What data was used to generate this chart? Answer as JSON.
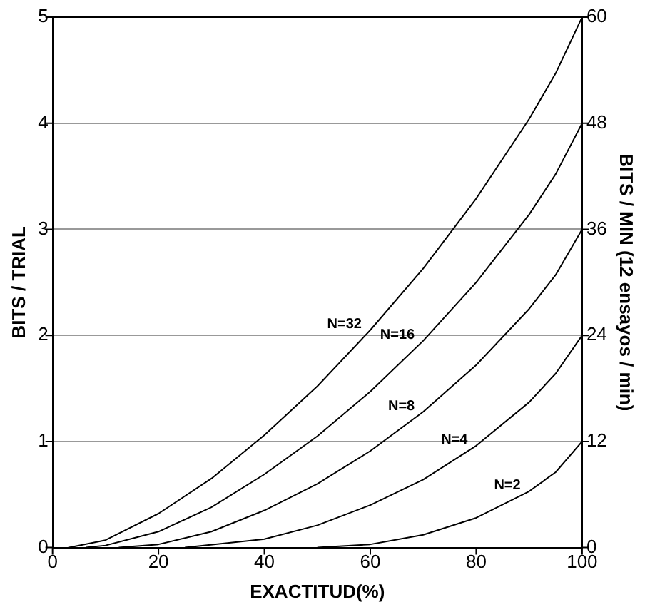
{
  "chart_data": {
    "type": "line",
    "xlabel": "EXACTITUD(%)",
    "ylabel": "BITS / TRIAL",
    "y2label": "BITS / MIN (12 ensayos / min)",
    "series": [
      {
        "name": "N=2",
        "color": "#000000",
        "x": [
          50,
          60,
          70,
          80,
          90,
          95,
          100
        ],
        "values": [
          0,
          0.03,
          0.12,
          0.28,
          0.53,
          0.71,
          1
        ]
      },
      {
        "name": "N=4",
        "color": "#000000",
        "x": [
          25,
          40,
          50,
          60,
          70,
          80,
          90,
          95,
          100
        ],
        "values": [
          0,
          0.08,
          0.21,
          0.4,
          0.64,
          0.96,
          1.37,
          1.64,
          2
        ]
      },
      {
        "name": "N=8",
        "color": "#000000",
        "x": [
          12.5,
          20,
          30,
          40,
          50,
          60,
          70,
          80,
          90,
          95,
          100
        ],
        "values": [
          0,
          0.03,
          0.15,
          0.35,
          0.6,
          0.91,
          1.28,
          1.72,
          2.25,
          2.57,
          3
        ]
      },
      {
        "name": "N=16",
        "color": "#000000",
        "x": [
          6.25,
          10,
          20,
          30,
          40,
          50,
          60,
          70,
          80,
          90,
          95,
          100
        ],
        "values": [
          0,
          0.02,
          0.15,
          0.38,
          0.69,
          1.05,
          1.47,
          1.95,
          2.5,
          3.14,
          3.52,
          4
        ]
      },
      {
        "name": "N=32",
        "color": "#000000",
        "x": [
          3.125,
          10,
          20,
          30,
          40,
          50,
          60,
          70,
          80,
          90,
          95,
          100
        ],
        "values": [
          0,
          0.07,
          0.32,
          0.65,
          1.06,
          1.52,
          2.05,
          2.63,
          3.29,
          4.04,
          4.47,
          5
        ]
      }
    ],
    "xlim": [
      0,
      100
    ],
    "xticks": [
      0,
      20,
      40,
      60,
      80,
      100
    ],
    "ylim": [
      0,
      5
    ],
    "yticks": [
      0,
      1,
      2,
      3,
      4,
      5
    ],
    "y2lim": [
      0,
      60
    ],
    "y2ticks": [
      0,
      12,
      24,
      36,
      48,
      60
    ],
    "grid": "y",
    "legend": false,
    "marker": "none",
    "line_style": "solid"
  }
}
